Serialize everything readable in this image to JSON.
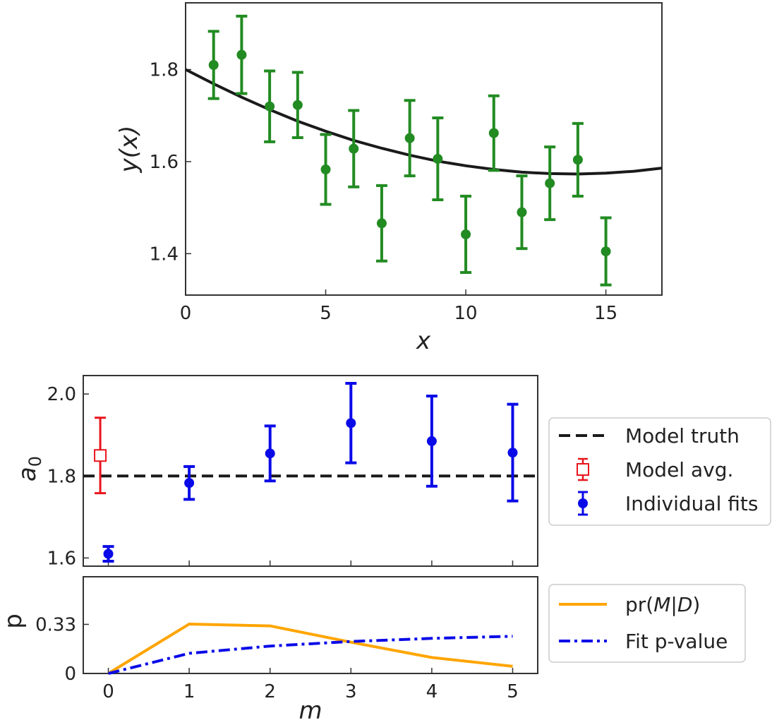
{
  "chart_data": [
    {
      "type": "scatter",
      "title": "",
      "xlabel": "x",
      "ylabel": "y(x)",
      "xlim": [
        0,
        17
      ],
      "ylim": [
        1.31,
        1.945
      ],
      "xticks": [
        "0",
        "5",
        "10",
        "15"
      ],
      "yticks": [
        "1.4",
        "1.6",
        "1.8"
      ],
      "grid": false,
      "series": [
        {
          "kind": "errorbar",
          "color": "#228b22",
          "x": [
            1,
            2,
            3,
            4,
            5,
            6,
            7,
            8,
            9,
            10,
            11,
            12,
            13,
            14,
            15
          ],
          "y": [
            1.81,
            1.832,
            1.72,
            1.723,
            1.583,
            1.628,
            1.466,
            1.651,
            1.606,
            1.442,
            1.662,
            1.49,
            1.553,
            1.604,
            1.405
          ],
          "err": [
            0.073,
            0.084,
            0.077,
            0.071,
            0.076,
            0.083,
            0.082,
            0.082,
            0.089,
            0.083,
            0.081,
            0.079,
            0.079,
            0.079,
            0.073
          ]
        },
        {
          "kind": "line",
          "color": "#1a1a1a",
          "x": [
            0,
            1,
            2,
            3,
            4,
            5,
            6,
            7,
            8,
            9,
            10,
            11,
            12,
            13,
            14,
            15,
            16,
            17
          ],
          "y": [
            1.8,
            1.769,
            1.74,
            1.713,
            1.688,
            1.666,
            1.646,
            1.629,
            1.614,
            1.601,
            1.591,
            1.583,
            1.577,
            1.574,
            1.573,
            1.575,
            1.579,
            1.586
          ]
        }
      ]
    },
    {
      "type": "scatter",
      "title": "",
      "xlabel": "",
      "ylabel": "a0",
      "xlim": [
        -0.31,
        5.31
      ],
      "ylim": [
        1.58,
        2.045
      ],
      "yticks": [
        "1.6",
        "1.8",
        "2.0"
      ],
      "grid": false,
      "legend_position": "right",
      "series": [
        {
          "name": "Model truth",
          "kind": "hline",
          "color": "#1a1a1a",
          "y": 1.8
        },
        {
          "name": "Model avg.",
          "kind": "errorbar",
          "marker": "open-square",
          "color": "#e8141c",
          "x": [
            -0.1
          ],
          "y": [
            1.85
          ],
          "err": [
            0.092
          ]
        },
        {
          "name": "Individual fits",
          "kind": "errorbar",
          "marker": "filled-circle",
          "color": "#0a0ae8",
          "x": [
            0,
            1,
            2,
            3,
            4,
            5
          ],
          "y": [
            1.61,
            1.783,
            1.855,
            1.929,
            1.885,
            1.857
          ],
          "err": [
            0.018,
            0.04,
            0.067,
            0.097,
            0.11,
            0.118
          ]
        }
      ]
    },
    {
      "type": "line",
      "title": "",
      "xlabel": "m",
      "ylabel": "p",
      "xlim": [
        -0.31,
        5.31
      ],
      "ylim": [
        0,
        0.65
      ],
      "xticks": [
        "0",
        "1",
        "2",
        "3",
        "4",
        "5"
      ],
      "yticks": [
        "0",
        "0.33"
      ],
      "grid": false,
      "legend_position": "right",
      "series": [
        {
          "name": "pr(M|D)",
          "color": "#ffa500",
          "style": "solid",
          "x": [
            0,
            1,
            2,
            3,
            4,
            5
          ],
          "y": [
            0,
            0.332,
            0.32,
            0.21,
            0.107,
            0.048
          ]
        },
        {
          "name": "Fit p-value",
          "color": "#0a0ae8",
          "style": "dashdot",
          "x": [
            0,
            1,
            2,
            3,
            4,
            5
          ],
          "y": [
            0,
            0.135,
            0.184,
            0.215,
            0.236,
            0.25
          ]
        }
      ]
    }
  ],
  "legend_upper": [
    "Model truth",
    "Model avg.",
    "Individual fits"
  ],
  "legend_lower_text": [
    "pr(",
    "M",
    "|",
    "D",
    ")"
  ],
  "label_a0": [
    "a",
    "0"
  ]
}
